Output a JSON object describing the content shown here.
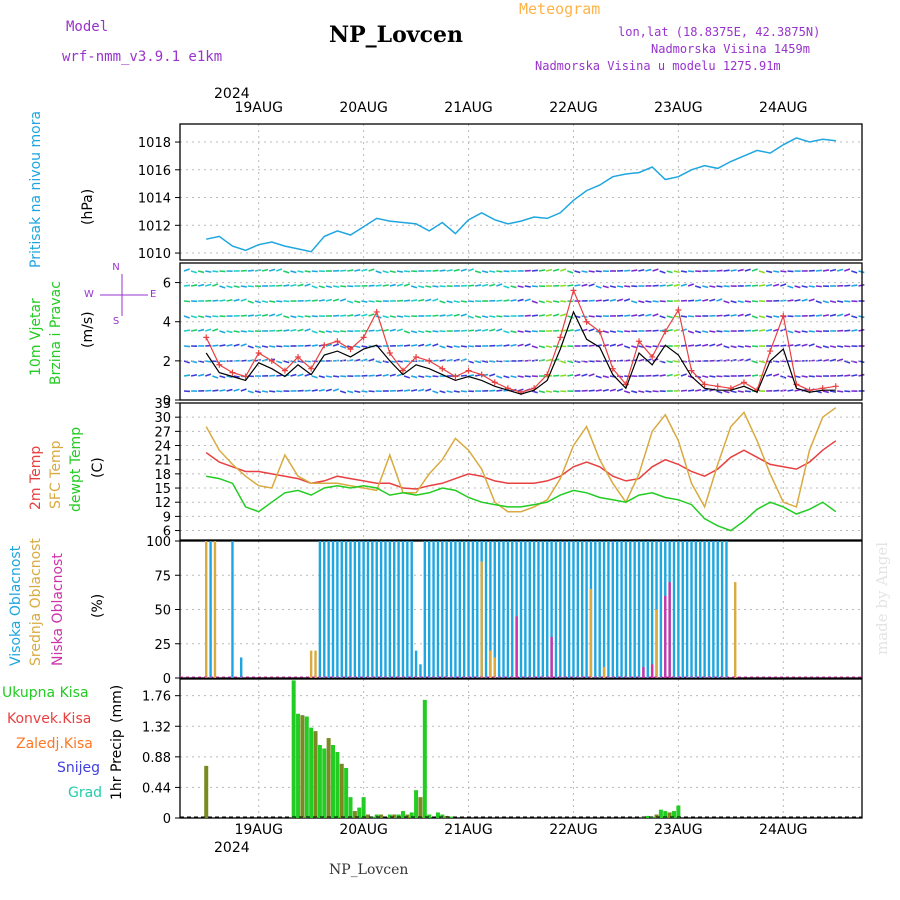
{
  "header": {
    "model_label": "Model",
    "model_name": "wrf-nmm_v3.9.1 e1km",
    "station": "NP_Lovcen",
    "meteogram_label": "Meteogram",
    "lonlat": "lon,lat (18.8375E, 42.3875N)",
    "altitude": "Nadmorska Visina 1459m",
    "model_altitude": "Nadmorska Visina u modelu 1275.91m",
    "watermark": "made by Angel",
    "footer_station": "NP_Lovcen",
    "year_top": "2024",
    "year_bottom": "2024"
  },
  "colors": {
    "pressure": "#1ea6e0",
    "wind_green": "#22cc22",
    "temp_red": "#e84040",
    "sfc_temp": "#d8aa40",
    "dewpt": "#22cc22",
    "cloud_high": "#1ea6e0",
    "cloud_mid": "#d8aa40",
    "cloud_low": "#cc33aa",
    "precip_total": "#22cc22",
    "precip_conv": "#e84040",
    "precip_frz": "#ff7722",
    "snow": "#4040e0",
    "hail": "#22ccaa",
    "purple_text": "#9933cc",
    "orange_text": "#ffb347"
  },
  "chart_data": [
    {
      "type": "line",
      "panel": "pressure",
      "ylabel": "Pritisak na nivou mora",
      "unit": "(hPa)",
      "x_axis": "2024-08-18 12:00 to 2024-08-24 12:00 (hours)",
      "categories": [
        "19AUG",
        "20AUG",
        "21AUG",
        "22AUG",
        "23AUG",
        "24AUG"
      ],
      "ylim": [
        1009.5,
        1019.3
      ],
      "yticks": [
        1010,
        1012,
        1014,
        1016,
        1018
      ],
      "x": [
        0,
        3,
        6,
        9,
        12,
        15,
        18,
        21,
        24,
        27,
        30,
        33,
        36,
        39,
        42,
        45,
        48,
        51,
        54,
        57,
        60,
        63,
        66,
        69,
        72,
        75,
        78,
        81,
        84,
        87,
        90,
        93,
        96,
        99,
        102,
        105,
        108,
        111,
        114,
        117,
        120,
        123,
        126,
        129,
        132,
        135,
        138,
        141,
        144
      ],
      "series": [
        {
          "values": [
            1011,
            1011.2,
            1010.5,
            1010.2,
            1010.6,
            1010.8,
            1010.5,
            1010.3,
            1010.1,
            1011.2,
            1011.6,
            1011.3,
            1011.9,
            1012.5,
            1012.3,
            1012.2,
            1012.1,
            1011.6,
            1012.2,
            1011.4,
            1012.4,
            1012.9,
            1012.4,
            1012.1,
            1012.3,
            1012.6,
            1012.5,
            1012.9,
            1013.8,
            1014.5,
            1014.9,
            1015.5,
            1015.7,
            1015.8,
            1016.2,
            1015.3,
            1015.5,
            1016.0,
            1016.3,
            1016.1,
            1016.6,
            1017.0,
            1017.4,
            1017.2,
            1017.8,
            1018.3,
            1018.0,
            1018.2,
            1018.1
          ]
        }
      ]
    },
    {
      "type": "line",
      "panel": "wind",
      "ylabel": "10m Vjetar",
      "ylabel2": "Brzina i Pravac",
      "unit": "(m/s)",
      "compass": [
        "N",
        "W",
        "E",
        "S"
      ],
      "ylim": [
        0,
        7
      ],
      "yticks": [
        0,
        2,
        4,
        6
      ],
      "x": [
        0,
        3,
        6,
        9,
        12,
        15,
        18,
        21,
        24,
        27,
        30,
        33,
        36,
        39,
        42,
        45,
        48,
        51,
        54,
        57,
        60,
        63,
        66,
        69,
        72,
        75,
        78,
        81,
        84,
        87,
        90,
        93,
        96,
        99,
        102,
        105,
        108,
        111,
        114,
        117,
        120,
        123,
        126,
        129,
        132,
        135,
        138,
        141,
        144
      ],
      "series": [
        {
          "values": [
            3.2,
            1.8,
            1.4,
            1.2,
            2.4,
            2.0,
            1.5,
            2.2,
            1.6,
            2.8,
            3.0,
            2.6,
            3.2,
            4.5,
            2.4,
            1.5,
            2.2,
            2.0,
            1.6,
            1.2,
            1.5,
            1.3,
            0.9,
            0.6,
            0.4,
            0.6,
            1.3,
            3.2,
            5.6,
            4.0,
            3.5,
            1.6,
            0.8,
            3.0,
            2.2,
            3.5,
            4.6,
            1.5,
            0.8,
            0.7,
            0.6,
            0.9,
            0.5,
            2.5,
            4.3,
            0.8,
            0.5,
            0.6,
            0.7
          ]
        },
        {
          "values": [
            2.4,
            1.4,
            1.2,
            1.0,
            1.9,
            1.6,
            1.2,
            1.8,
            1.3,
            2.3,
            2.5,
            2.2,
            2.6,
            2.8,
            2.0,
            1.3,
            1.8,
            1.6,
            1.3,
            1.0,
            1.2,
            1.0,
            0.7,
            0.5,
            0.3,
            0.5,
            1.0,
            2.6,
            4.5,
            3.1,
            2.7,
            1.3,
            0.6,
            2.4,
            1.8,
            2.8,
            2.3,
            1.2,
            0.6,
            0.5,
            0.5,
            0.7,
            0.4,
            2.0,
            2.6,
            0.6,
            0.4,
            0.5,
            0.5
          ]
        }
      ]
    },
    {
      "type": "line",
      "panel": "temperature",
      "ylabel": "2m Temp",
      "ylabel2": "SFC Temp",
      "ylabel3": "dewpt Temp",
      "unit": "(C)",
      "ylim": [
        4,
        33
      ],
      "yticks": [
        6,
        9,
        12,
        15,
        18,
        21,
        24,
        27,
        30,
        33
      ],
      "x": [
        0,
        3,
        6,
        9,
        12,
        15,
        18,
        21,
        24,
        27,
        30,
        33,
        36,
        39,
        42,
        45,
        48,
        51,
        54,
        57,
        60,
        63,
        66,
        69,
        72,
        75,
        78,
        81,
        84,
        87,
        90,
        93,
        96,
        99,
        102,
        105,
        108,
        111,
        114,
        117,
        120,
        123,
        126,
        129,
        132,
        135,
        138,
        141,
        144
      ],
      "series": [
        {
          "values": [
            22.5,
            20.5,
            19.5,
            18.5,
            18.5,
            18.0,
            17.5,
            17.0,
            16.0,
            16.5,
            17.5,
            17.0,
            16.5,
            16.0,
            16.0,
            15.0,
            14.8,
            15.5,
            16.0,
            17.0,
            18.0,
            17.5,
            16.5,
            16.0,
            16.0,
            16.0,
            16.5,
            17.5,
            19.5,
            20.5,
            19.5,
            17.5,
            16.5,
            17.0,
            19.5,
            21.0,
            20.0,
            18.5,
            17.5,
            19.0,
            21.5,
            23.0,
            21.5,
            20.0,
            19.5,
            19.0,
            20.5,
            23.0,
            25.0
          ]
        },
        {
          "values": [
            28.0,
            23.0,
            20.0,
            17.5,
            15.5,
            15.0,
            22.0,
            17.5,
            16.0,
            16.0,
            16.0,
            15.5,
            15.0,
            14.5,
            22.0,
            14.0,
            14.0,
            18.0,
            21.0,
            25.5,
            23.0,
            19.0,
            12.0,
            10.0,
            10.0,
            11.0,
            12.5,
            17.0,
            24.0,
            28.0,
            21.0,
            16.0,
            12.0,
            18.0,
            27.0,
            30.5,
            25.0,
            16.0,
            11.0,
            20.0,
            28.0,
            31.0,
            25.0,
            18.0,
            12.0,
            11.0,
            23.0,
            30.0,
            32.0
          ]
        },
        {
          "values": [
            17.5,
            17.0,
            16.0,
            11.0,
            10.0,
            12.0,
            14.0,
            14.5,
            13.5,
            15.0,
            15.5,
            15.0,
            15.5,
            15.0,
            13.5,
            14.0,
            13.5,
            14.0,
            15.0,
            14.5,
            13.0,
            12.0,
            11.5,
            11.0,
            11.0,
            11.5,
            12.0,
            13.5,
            14.5,
            14.0,
            13.0,
            12.5,
            12.0,
            13.5,
            14.0,
            13.0,
            12.5,
            11.5,
            8.5,
            7.0,
            6.0,
            8.0,
            10.5,
            12.0,
            11.0,
            9.5,
            10.5,
            12.0,
            10.0
          ]
        }
      ]
    },
    {
      "type": "bar",
      "panel": "cloud",
      "ylabel": "Visoka Oblacnost",
      "ylabel2": "Srednja Oblacnost",
      "ylabel3": "Niska Oblacnost",
      "unit": "(%)",
      "ylim": [
        0,
        100
      ],
      "yticks": [
        0,
        25,
        50,
        75,
        100
      ],
      "series": [
        {
          "x": [
            1,
            6,
            8,
            26,
            27,
            28,
            29,
            30,
            31,
            32,
            33,
            34,
            35,
            36,
            37,
            38,
            39,
            40,
            41,
            42,
            43,
            44,
            45,
            46,
            47,
            48,
            49,
            50,
            51,
            52,
            53,
            54,
            55,
            56,
            57,
            58,
            59,
            60,
            61,
            62,
            63,
            64,
            65,
            66,
            67,
            68,
            69,
            70,
            71,
            72,
            73,
            74,
            75,
            76,
            77,
            78,
            79,
            80,
            81,
            82,
            83,
            84,
            85,
            86,
            87,
            88,
            89,
            90,
            91,
            92,
            93,
            94,
            95,
            96,
            97,
            98,
            99,
            100,
            101,
            102,
            103,
            104,
            105,
            106,
            107,
            108,
            109,
            110,
            111,
            112,
            113,
            114,
            115,
            116,
            117,
            118,
            119
          ],
          "values": [
            100,
            100,
            15,
            100,
            100,
            100,
            100,
            100,
            100,
            100,
            100,
            100,
            100,
            100,
            100,
            100,
            100,
            100,
            100,
            100,
            100,
            100,
            100,
            100,
            100,
            20,
            10,
            100,
            100,
            100,
            100,
            100,
            100,
            100,
            100,
            100,
            100,
            100,
            100,
            100,
            100,
            100,
            100,
            100,
            100,
            100,
            100,
            100,
            100,
            100,
            100,
            100,
            100,
            100,
            100,
            100,
            100,
            100,
            100,
            100,
            100,
            100,
            100,
            100,
            100,
            100,
            100,
            100,
            100,
            100,
            100,
            100,
            100,
            100,
            100,
            100,
            100,
            100,
            100,
            100,
            100,
            100,
            100,
            100,
            100,
            100,
            100,
            100,
            100,
            100,
            100,
            100,
            100,
            100,
            100,
            100,
            100
          ]
        },
        {
          "x": [
            0,
            2,
            24,
            25,
            63,
            65,
            66,
            88,
            91,
            103,
            121
          ],
          "values": [
            100,
            100,
            20,
            20,
            85,
            20,
            15,
            65,
            8,
            50,
            70
          ]
        },
        {
          "x": [
            71,
            79,
            100,
            102,
            105,
            106
          ],
          "values": [
            45,
            30,
            8,
            10,
            60,
            70
          ]
        }
      ]
    },
    {
      "type": "bar",
      "panel": "precip",
      "ylabel": "1hr Precip",
      "unit": "(mm)",
      "legend": [
        "Ukupna Kisa",
        "Konvek.Kisa",
        "Zaledj.Kisa",
        "Snijeg",
        "Grad"
      ],
      "ylim": [
        0,
        2.0
      ],
      "yticks": [
        0,
        0.44,
        0.88,
        1.32,
        1.76
      ],
      "series": [
        {
          "name": "Ukupna Kisa",
          "x": [
            0,
            20,
            21,
            22,
            23,
            24,
            25,
            26,
            27,
            28,
            29,
            30,
            31,
            32,
            33,
            34,
            35,
            36,
            37,
            38,
            39,
            40,
            41,
            42,
            43,
            44,
            45,
            46,
            47,
            48,
            49,
            50,
            51,
            52,
            53,
            54,
            55,
            56,
            57,
            58,
            59,
            60,
            61,
            62,
            63,
            64,
            65,
            66,
            67,
            68,
            69,
            70,
            71,
            72,
            73,
            74,
            75,
            76,
            77,
            78,
            79,
            80,
            81,
            82,
            83,
            84,
            85,
            86,
            87,
            88,
            89,
            90,
            91,
            92,
            93,
            94,
            95,
            96,
            97,
            98,
            99,
            100,
            101,
            102,
            103,
            104,
            105,
            106,
            107,
            108
          ],
          "values": [
            0.75,
            1.98,
            1.5,
            1.48,
            1.46,
            1.3,
            1.25,
            1.05,
            1.0,
            1.15,
            1.05,
            0.95,
            0.78,
            0.72,
            0.3,
            0.1,
            0.15,
            0.3,
            0.05,
            0.02,
            0.05,
            0.05,
            0.0,
            0.05,
            0.05,
            0.05,
            0.1,
            0.05,
            0.08,
            0.4,
            0.3,
            1.7,
            0.05,
            0.0,
            0.08,
            0.05,
            0.03,
            0.02,
            0.0,
            0.0,
            0.0,
            0.0,
            0.0,
            0.0,
            0.0,
            0.0,
            0.0,
            0.0,
            0.0,
            0.0,
            0.0,
            0.0,
            0.0,
            0.0,
            0.0,
            0.0,
            0.0,
            0.0,
            0.0,
            0.0,
            0.0,
            0.0,
            0.0,
            0.0,
            0.0,
            0.0,
            0.0,
            0.0,
            0.0,
            0.0,
            0.0,
            0.0,
            0.0,
            0.0,
            0.0,
            0.0,
            0.0,
            0.0,
            0.0,
            0.0,
            0.0,
            0.02,
            0.03,
            0.02,
            0.05,
            0.12,
            0.1,
            0.08,
            0.1,
            0.18
          ]
        }
      ]
    }
  ]
}
